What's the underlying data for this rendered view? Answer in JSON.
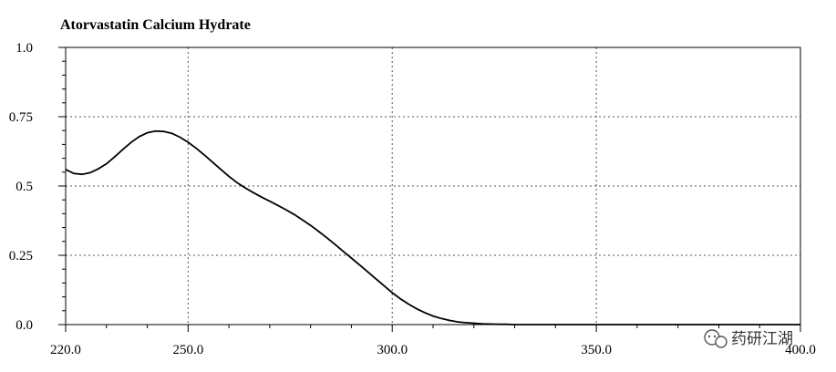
{
  "chart_data": {
    "type": "line",
    "title": "Atorvastatin Calcium Hydrate",
    "xlabel": "",
    "ylabel": "",
    "xlim": [
      220,
      400
    ],
    "ylim": [
      0,
      1
    ],
    "x_ticks": [
      "220.0",
      "250.0",
      "300.0",
      "350.0",
      "400.0"
    ],
    "x_tick_values": [
      220,
      250,
      300,
      350,
      400
    ],
    "y_ticks": [
      "1.0",
      "0.75",
      "0.5",
      "0.25",
      "0.0"
    ],
    "y_tick_values": [
      1.0,
      0.75,
      0.5,
      0.25,
      0.0
    ],
    "grid": true,
    "series": [
      {
        "x": [
          220,
          222,
          224,
          226,
          228,
          230,
          232,
          234,
          236,
          238,
          240,
          242,
          244,
          246,
          248,
          250,
          252,
          254,
          256,
          258,
          260,
          262,
          264,
          266,
          268,
          270,
          272,
          274,
          276,
          278,
          280,
          282,
          284,
          286,
          288,
          290,
          292,
          294,
          296,
          298,
          300,
          302,
          304,
          306,
          308,
          310,
          312,
          314,
          316,
          318,
          320,
          322,
          324,
          326,
          328,
          330,
          335,
          340,
          345,
          350,
          360,
          370,
          380,
          390,
          400
        ],
        "y": [
          0.56,
          0.545,
          0.542,
          0.548,
          0.562,
          0.58,
          0.605,
          0.632,
          0.657,
          0.678,
          0.692,
          0.698,
          0.697,
          0.69,
          0.676,
          0.658,
          0.636,
          0.612,
          0.586,
          0.56,
          0.535,
          0.512,
          0.493,
          0.476,
          0.46,
          0.445,
          0.43,
          0.414,
          0.397,
          0.378,
          0.358,
          0.336,
          0.313,
          0.289,
          0.264,
          0.24,
          0.215,
          0.19,
          0.165,
          0.14,
          0.115,
          0.093,
          0.074,
          0.057,
          0.043,
          0.031,
          0.022,
          0.015,
          0.01,
          0.007,
          0.005,
          0.003,
          0.002,
          0.001,
          0.001,
          0.0,
          0.0,
          0.0,
          0.0,
          0.0,
          0.0,
          0.0,
          0.0,
          0.0,
          0.0
        ]
      }
    ]
  },
  "watermark": {
    "text": "药研江湖",
    "icon": "wechat-icon"
  }
}
